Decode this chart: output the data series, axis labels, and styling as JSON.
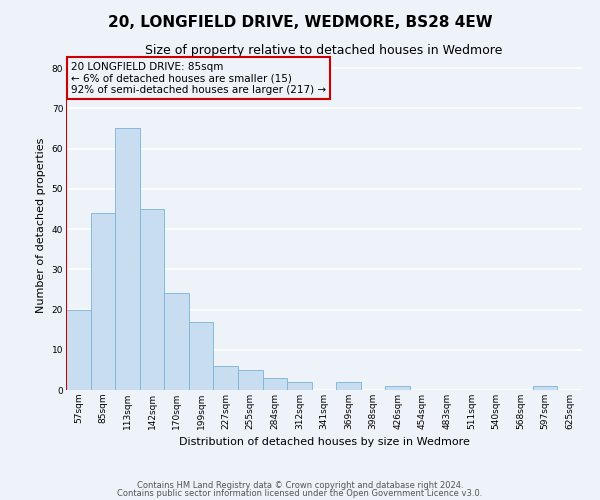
{
  "title": "20, LONGFIELD DRIVE, WEDMORE, BS28 4EW",
  "subtitle": "Size of property relative to detached houses in Wedmore",
  "xlabel": "Distribution of detached houses by size in Wedmore",
  "ylabel": "Number of detached properties",
  "bar_labels": [
    "57sqm",
    "85sqm",
    "113sqm",
    "142sqm",
    "170sqm",
    "199sqm",
    "227sqm",
    "255sqm",
    "284sqm",
    "312sqm",
    "341sqm",
    "369sqm",
    "398sqm",
    "426sqm",
    "454sqm",
    "483sqm",
    "511sqm",
    "540sqm",
    "568sqm",
    "597sqm",
    "625sqm"
  ],
  "bar_values": [
    20,
    44,
    65,
    45,
    24,
    17,
    6,
    5,
    3,
    2,
    0,
    2,
    0,
    1,
    0,
    0,
    0,
    0,
    0,
    1,
    0
  ],
  "bar_color": "#c9ddf0",
  "bar_edge_color": "#7ab4d8",
  "highlight_bar_index": 1,
  "highlight_edge_color": "#cc0000",
  "annotation_box_edge_color": "#cc0000",
  "annotation_lines": [
    "20 LONGFIELD DRIVE: 85sqm",
    "← 6% of detached houses are smaller (15)",
    "92% of semi-detached houses are larger (217) →"
  ],
  "ylim": [
    0,
    82
  ],
  "yticks": [
    0,
    10,
    20,
    30,
    40,
    50,
    60,
    70,
    80
  ],
  "footer_line1": "Contains HM Land Registry data © Crown copyright and database right 2024.",
  "footer_line2": "Contains public sector information licensed under the Open Government Licence v3.0.",
  "background_color": "#eef2f9",
  "grid_color": "#ffffff",
  "title_fontsize": 11,
  "subtitle_fontsize": 9,
  "axis_label_fontsize": 8,
  "tick_fontsize": 6.5,
  "annotation_fontsize": 7.5,
  "footer_fontsize": 6
}
